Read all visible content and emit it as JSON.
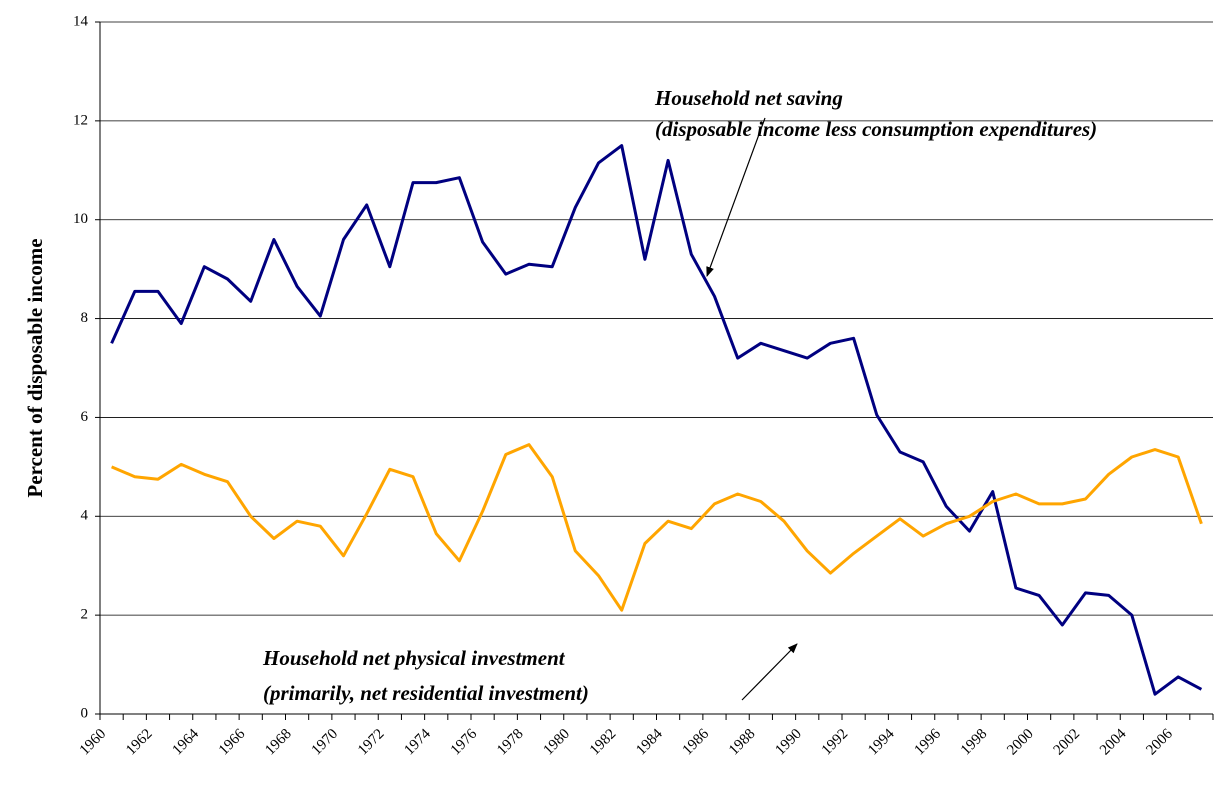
{
  "chart_data": {
    "type": "line",
    "y_label": "Percent of disposable income",
    "categories": [
      "1960",
      null,
      "1962",
      null,
      "1964",
      null,
      "1966",
      null,
      "1968",
      null,
      "1970",
      null,
      "1972",
      null,
      "1974",
      null,
      "1976",
      null,
      "1978",
      null,
      "1980",
      null,
      "1982",
      null,
      "1984",
      null,
      "1986",
      null,
      "1988",
      null,
      "1990",
      null,
      "1992",
      null,
      "1994",
      null,
      "1996",
      null,
      "1998",
      null,
      "2000",
      null,
      "2002",
      null,
      "2004",
      null,
      "2006",
      null
    ],
    "series": [
      {
        "color": "#000080",
        "values": [
          7.5,
          8.55,
          8.55,
          7.9,
          9.05,
          8.8,
          8.35,
          9.6,
          8.65,
          8.05,
          9.6,
          10.3,
          9.05,
          10.75,
          10.75,
          10.85,
          9.55,
          8.9,
          9.1,
          9.05,
          10.25,
          11.15,
          11.5,
          9.2,
          11.2,
          9.3,
          8.45,
          7.2,
          7.5,
          7.35,
          7.2,
          7.5,
          7.6,
          6.05,
          5.3,
          5.1,
          4.2,
          3.7,
          4.5,
          2.55,
          2.4,
          1.8,
          2.45,
          2.4,
          2.0,
          0.4,
          0.75,
          0.5
        ]
      },
      {
        "color": "#ffa500",
        "values": [
          5.0,
          4.8,
          4.75,
          5.05,
          4.85,
          4.7,
          4.0,
          3.55,
          3.9,
          3.8,
          3.2,
          4.05,
          4.95,
          4.8,
          3.65,
          3.1,
          4.1,
          5.25,
          5.45,
          4.8,
          3.3,
          2.8,
          2.1,
          3.45,
          3.9,
          3.75,
          4.25,
          4.45,
          4.3,
          3.9,
          3.3,
          2.85,
          3.25,
          3.6,
          3.95,
          3.6,
          3.85,
          4.0,
          4.3,
          4.45,
          4.25,
          4.25,
          4.35,
          4.85,
          5.2,
          5.35,
          5.2,
          3.85
        ]
      }
    ],
    "annotations": [
      {
        "lines": [
          "Household net saving",
          "(disposable income less consumption expenditures)"
        ]
      },
      {
        "lines": [
          "Household net physical investment",
          "(primarily, net residential investment)"
        ]
      }
    ],
    "ylim": [
      0,
      14
    ],
    "yticks": [
      0,
      2,
      4,
      6,
      8,
      10,
      12,
      14
    ],
    "grid": true
  }
}
